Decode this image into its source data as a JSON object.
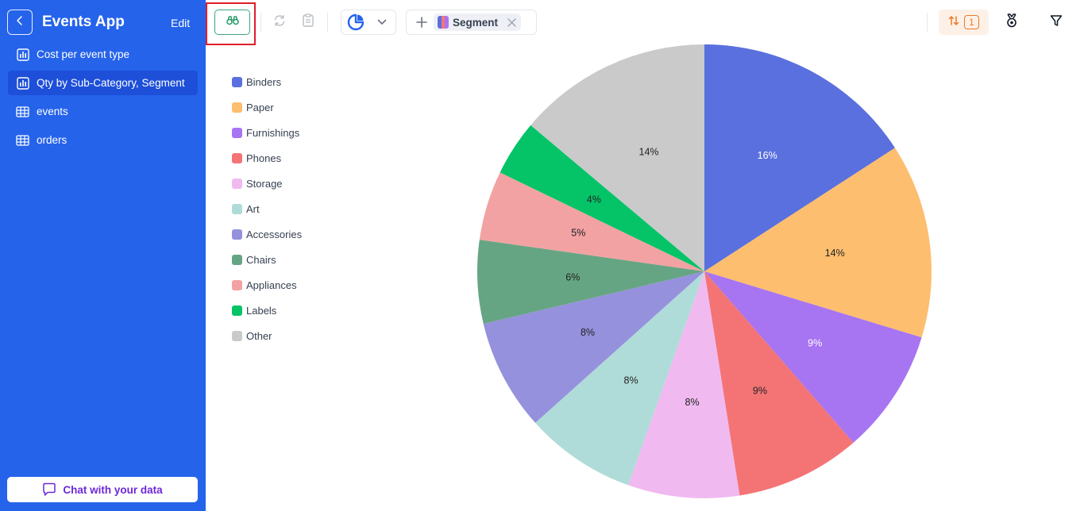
{
  "sidebar": {
    "app_title": "Events App",
    "edit_label": "Edit",
    "items": [
      {
        "label": "Cost per event type",
        "icon": "bar-chart-icon"
      },
      {
        "label": "Qty by Sub-Category, Segment",
        "icon": "bar-chart-icon",
        "active": true
      },
      {
        "label": "events",
        "icon": "table-icon"
      },
      {
        "label": "orders",
        "icon": "table-icon"
      }
    ],
    "chat_label": "Chat with your data"
  },
  "toolbar": {
    "explore_icon": "binoculars-icon",
    "chart_type": "pie",
    "segment_label": "Segment",
    "sort_count": "1"
  },
  "colors": {
    "sidebar": "#2563eb",
    "accent": "#2563eb",
    "highlight": "#e11d2a"
  },
  "chart_data": {
    "type": "pie",
    "slices": [
      {
        "name": "Binders",
        "value": 16,
        "label": "16%",
        "color": "#5a70de"
      },
      {
        "name": "Paper",
        "value": 14,
        "label": "14%",
        "color": "#fdbe6f"
      },
      {
        "name": "Furnishings",
        "value": 9,
        "label": "9%",
        "color": "#a774f2"
      },
      {
        "name": "Phones",
        "value": 9,
        "label": "9%",
        "color": "#f47476"
      },
      {
        "name": "Storage",
        "value": 8,
        "label": "8%",
        "color": "#f0baf0"
      },
      {
        "name": "Art",
        "value": 8,
        "label": "8%",
        "color": "#afdcd9"
      },
      {
        "name": "Accessories",
        "value": 8,
        "label": "8%",
        "color": "#9591dc"
      },
      {
        "name": "Chairs",
        "value": 6,
        "label": "6%",
        "color": "#66a583"
      },
      {
        "name": "Appliances",
        "value": 5,
        "label": "5%",
        "color": "#f2a2a3"
      },
      {
        "name": "Labels",
        "value": 4,
        "label": "4%",
        "color": "#05c468"
      },
      {
        "name": "Other",
        "value": 14,
        "label": "14%",
        "color": "#cacaca"
      }
    ],
    "legend_position": "left"
  }
}
